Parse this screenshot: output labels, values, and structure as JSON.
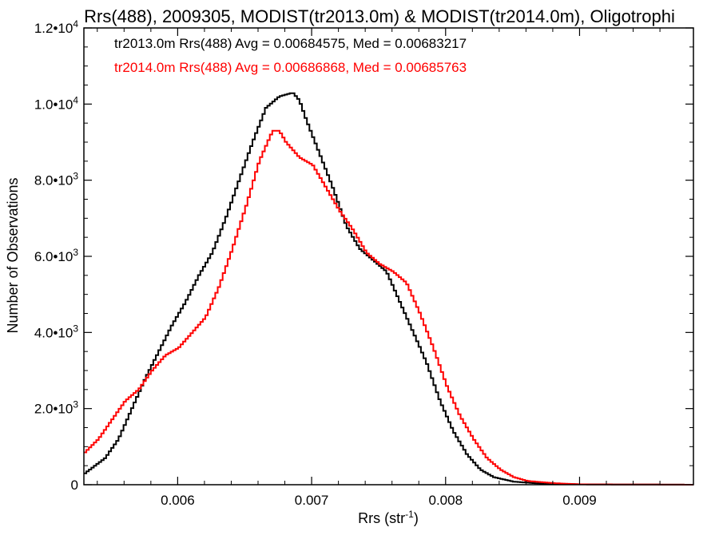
{
  "chart_data": {
    "type": "line",
    "title": "Rrs(488), 2009305, MODIST(tr2013.0m) & MODIST(tr2014.0m), Oligotrophi",
    "xlabel": "Rrs (str",
    "xlabel_sup": "-1",
    "xlabel_close": ")",
    "ylabel": "Number of Observations",
    "xlim": [
      0.0053,
      0.00985
    ],
    "ylim": [
      0,
      12000
    ],
    "x_ticks": [
      {
        "value": 0.006,
        "label": "0.006"
      },
      {
        "value": 0.007,
        "label": "0.007"
      },
      {
        "value": 0.008,
        "label": "0.008"
      },
      {
        "value": 0.009,
        "label": "0.009"
      }
    ],
    "y_ticks": [
      {
        "value": 0,
        "mant": "0",
        "exp": ""
      },
      {
        "value": 2000,
        "mant": "2.0•10",
        "exp": "3"
      },
      {
        "value": 4000,
        "mant": "4.0•10",
        "exp": "3"
      },
      {
        "value": 6000,
        "mant": "6.0•10",
        "exp": "3"
      },
      {
        "value": 8000,
        "mant": "8.0•10",
        "exp": "3"
      },
      {
        "value": 10000,
        "mant": "1.0•10",
        "exp": "4"
      },
      {
        "value": 12000,
        "mant": "1.2•10",
        "exp": "4"
      }
    ],
    "annotations": [
      {
        "text": "tr2013.0m Rrs(488) Avg = 0.00684575, Med = 0.00683217",
        "color": "#000000"
      },
      {
        "text": "tr2014.0m Rrs(488) Avg = 0.00686868, Med = 0.00685763",
        "color": "#ff0000"
      }
    ],
    "grid": false,
    "series": [
      {
        "name": "tr2013.0m",
        "color": "#000000",
        "points": [
          [
            0.0053,
            300
          ],
          [
            0.00545,
            700
          ],
          [
            0.00555,
            1200
          ],
          [
            0.00565,
            2000
          ],
          [
            0.00575,
            2800
          ],
          [
            0.00585,
            3500
          ],
          [
            0.00595,
            4200
          ],
          [
            0.00605,
            4800
          ],
          [
            0.00615,
            5500
          ],
          [
            0.00625,
            6100
          ],
          [
            0.00635,
            7000
          ],
          [
            0.00645,
            8000
          ],
          [
            0.00655,
            9000
          ],
          [
            0.00665,
            9900
          ],
          [
            0.00675,
            10200
          ],
          [
            0.00685,
            10300
          ],
          [
            0.0069,
            10100
          ],
          [
            0.00695,
            9600
          ],
          [
            0.00705,
            8700
          ],
          [
            0.00715,
            7800
          ],
          [
            0.00725,
            6800
          ],
          [
            0.00735,
            6200
          ],
          [
            0.00745,
            5900
          ],
          [
            0.00755,
            5600
          ],
          [
            0.00765,
            4800
          ],
          [
            0.00775,
            4000
          ],
          [
            0.00785,
            3200
          ],
          [
            0.00795,
            2200
          ],
          [
            0.00805,
            1400
          ],
          [
            0.00815,
            800
          ],
          [
            0.00825,
            400
          ],
          [
            0.00835,
            200
          ],
          [
            0.0085,
            80
          ],
          [
            0.0087,
            30
          ],
          [
            0.009,
            10
          ],
          [
            0.00985,
            0
          ]
        ]
      },
      {
        "name": "tr2014.0m",
        "color": "#ff0000",
        "points": [
          [
            0.0053,
            850
          ],
          [
            0.0054,
            1200
          ],
          [
            0.0055,
            1700
          ],
          [
            0.0056,
            2200
          ],
          [
            0.0057,
            2500
          ],
          [
            0.0058,
            3000
          ],
          [
            0.0059,
            3400
          ],
          [
            0.006,
            3600
          ],
          [
            0.0061,
            4000
          ],
          [
            0.0062,
            4400
          ],
          [
            0.0063,
            5200
          ],
          [
            0.0064,
            6200
          ],
          [
            0.0065,
            7300
          ],
          [
            0.0066,
            8500
          ],
          [
            0.0067,
            9300
          ],
          [
            0.00675,
            9300
          ],
          [
            0.0068,
            9000
          ],
          [
            0.0069,
            8600
          ],
          [
            0.007,
            8400
          ],
          [
            0.0071,
            7800
          ],
          [
            0.0072,
            7200
          ],
          [
            0.0073,
            6700
          ],
          [
            0.0074,
            6100
          ],
          [
            0.0075,
            5800
          ],
          [
            0.0076,
            5600
          ],
          [
            0.0077,
            5300
          ],
          [
            0.0078,
            4500
          ],
          [
            0.0079,
            3600
          ],
          [
            0.008,
            2600
          ],
          [
            0.0081,
            1800
          ],
          [
            0.0082,
            1200
          ],
          [
            0.0083,
            700
          ],
          [
            0.0084,
            400
          ],
          [
            0.0085,
            200
          ],
          [
            0.0086,
            100
          ],
          [
            0.0088,
            40
          ],
          [
            0.009,
            10
          ],
          [
            0.00985,
            0
          ]
        ]
      }
    ]
  }
}
